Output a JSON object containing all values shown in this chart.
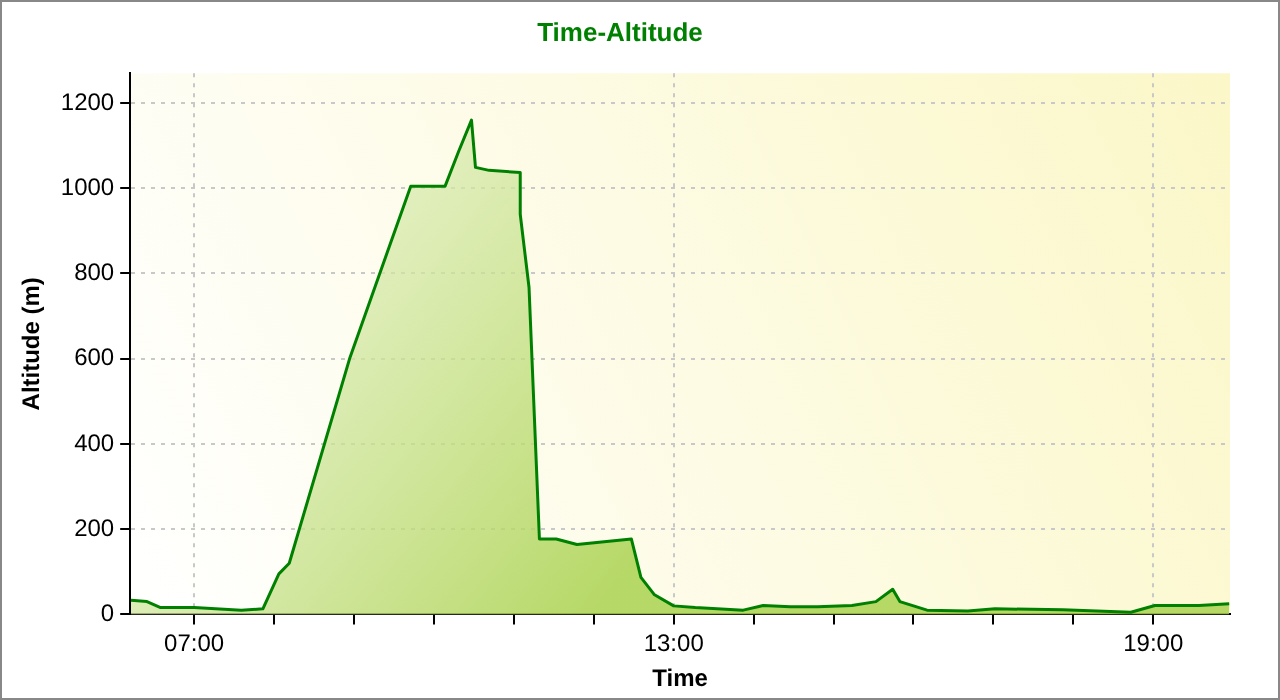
{
  "chart_data": {
    "type": "area",
    "title": "Time-Altitude",
    "xlabel": "Time",
    "ylabel": "Altitude (m)",
    "x": [
      6.21,
      6.41,
      6.58,
      7.0,
      7.59,
      7.86,
      8.06,
      8.19,
      8.95,
      9.71,
      10.14,
      10.31,
      10.47,
      10.52,
      10.69,
      11.08,
      11.08,
      11.19,
      11.32,
      11.53,
      11.79,
      12.47,
      12.59,
      12.76,
      13.0,
      13.27,
      13.87,
      14.12,
      14.46,
      14.8,
      15.23,
      15.53,
      15.74,
      15.83,
      16.17,
      16.68,
      17.02,
      17.87,
      18.72,
      19.02,
      19.57,
      19.95
    ],
    "series": [
      {
        "color": "#008000",
        "values": [
          33,
          30,
          16,
          16,
          10,
          13,
          95,
          120,
          603,
          1005,
          1005,
          1087,
          1160,
          1049,
          1042,
          1037,
          939,
          767,
          177,
          177,
          164,
          177,
          87,
          46,
          20,
          16,
          10,
          21,
          18,
          18,
          21,
          30,
          59,
          30,
          10,
          8,
          13,
          11,
          5,
          21,
          21,
          25
        ]
      }
    ],
    "xlim": [
      6.2,
      19.96
    ],
    "xticks": [
      {
        "value": 7,
        "label": "07:00"
      },
      {
        "value": 8,
        "label": null
      },
      {
        "value": 9,
        "label": null
      },
      {
        "value": 10,
        "label": null
      },
      {
        "value": 11,
        "label": null
      },
      {
        "value": 12,
        "label": null
      },
      {
        "value": 13,
        "label": "13:00"
      },
      {
        "value": 14,
        "label": null
      },
      {
        "value": 15,
        "label": null
      },
      {
        "value": 16,
        "label": null
      },
      {
        "value": 17,
        "label": null
      },
      {
        "value": 18,
        "label": null
      },
      {
        "value": 19,
        "label": "19:00"
      }
    ],
    "ylim": [
      0,
      1270
    ],
    "yticks": [
      0,
      200,
      400,
      600,
      800,
      1000,
      1200
    ],
    "grid": true,
    "legend": false,
    "marker": "none",
    "line_style": "solid"
  }
}
